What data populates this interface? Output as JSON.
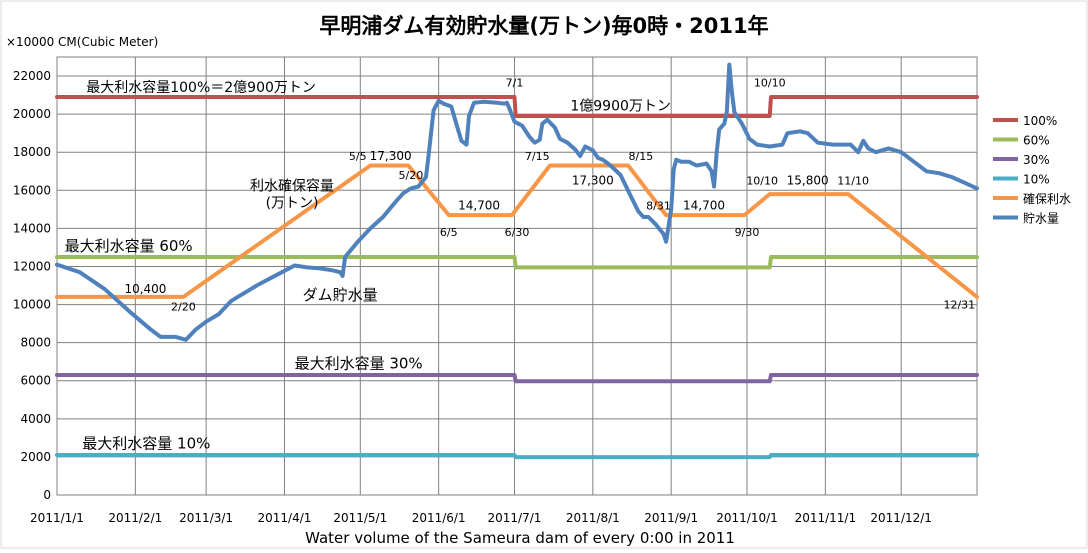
{
  "chart_data": {
    "type": "line",
    "title": "早明浦ダム有効貯水量(万トン)毎0時・2011年",
    "unit_label": "×10000 CM(Cubic Meter)",
    "xlabel": "Water volume of the Sameura dam of every 0:00 in 2011",
    "ylim": [
      0,
      23000
    ],
    "yticks": [
      0,
      2000,
      4000,
      6000,
      8000,
      10000,
      12000,
      14000,
      16000,
      18000,
      20000,
      22000
    ],
    "xlim": [
      1,
      365
    ],
    "grid": true,
    "legend_position": "right",
    "x_ticks": [
      {
        "day": 1,
        "label": "2011/1/1"
      },
      {
        "day": 32,
        "label": "2011/2/1"
      },
      {
        "day": 60,
        "label": "2011/3/1"
      },
      {
        "day": 91,
        "label": "2011/4/1"
      },
      {
        "day": 121,
        "label": "2011/5/1"
      },
      {
        "day": 152,
        "label": "2011/6/1"
      },
      {
        "day": 182,
        "label": "2011/7/1"
      },
      {
        "day": 213,
        "label": "2011/8/1"
      },
      {
        "day": 244,
        "label": "2011/9/1"
      },
      {
        "day": 274,
        "label": "2011/10/1"
      },
      {
        "day": 305,
        "label": "2011/11/1"
      },
      {
        "day": 335,
        "label": "2011/12/1"
      }
    ],
    "series": [
      {
        "name": "100%",
        "color": "#c0504d",
        "points": [
          [
            1,
            20900
          ],
          [
            182,
            20900
          ],
          [
            182.5,
            19900
          ],
          [
            283,
            19900
          ],
          [
            283.5,
            20900
          ],
          [
            365,
            20900
          ]
        ]
      },
      {
        "name": "60%",
        "color": "#9bbb59",
        "points": [
          [
            1,
            12500
          ],
          [
            182,
            12500
          ],
          [
            182.5,
            11950
          ],
          [
            283,
            11950
          ],
          [
            283.5,
            12500
          ],
          [
            365,
            12500
          ]
        ]
      },
      {
        "name": "30%",
        "color": "#8064a2",
        "points": [
          [
            1,
            6300
          ],
          [
            182,
            6300
          ],
          [
            182.5,
            5970
          ],
          [
            283,
            5970
          ],
          [
            283.5,
            6300
          ],
          [
            365,
            6300
          ]
        ]
      },
      {
        "name": "10%",
        "color": "#4bacc6",
        "points": [
          [
            1,
            2100
          ],
          [
            182,
            2100
          ],
          [
            182.5,
            1990
          ],
          [
            283,
            1990
          ],
          [
            283.5,
            2100
          ],
          [
            365,
            2100
          ]
        ]
      },
      {
        "name": "確保利水",
        "color": "#f79646",
        "points": [
          [
            1,
            10400
          ],
          [
            51,
            10400
          ],
          [
            125,
            17300
          ],
          [
            140,
            17300
          ],
          [
            156,
            14700
          ],
          [
            181,
            14700
          ],
          [
            196,
            17300
          ],
          [
            227,
            17300
          ],
          [
            242,
            14700
          ],
          [
            273,
            14700
          ],
          [
            283,
            15800
          ],
          [
            314,
            15800
          ],
          [
            365,
            10400
          ]
        ]
      },
      {
        "name": "貯水量",
        "color": "#4f81bd",
        "points": [
          [
            1,
            12100
          ],
          [
            10,
            11700
          ],
          [
            20,
            10800
          ],
          [
            30,
            9600
          ],
          [
            38,
            8700
          ],
          [
            42,
            8300
          ],
          [
            48,
            8300
          ],
          [
            52,
            8150
          ],
          [
            56,
            8700
          ],
          [
            60,
            9100
          ],
          [
            65,
            9500
          ],
          [
            70,
            10200
          ],
          [
            80,
            11000
          ],
          [
            90,
            11700
          ],
          [
            95,
            12050
          ],
          [
            100,
            11950
          ],
          [
            105,
            11900
          ],
          [
            110,
            11800
          ],
          [
            113,
            11700
          ],
          [
            114,
            11500
          ],
          [
            115,
            12500
          ],
          [
            120,
            13300
          ],
          [
            125,
            14000
          ],
          [
            130,
            14600
          ],
          [
            135,
            15400
          ],
          [
            138,
            15850
          ],
          [
            141,
            16100
          ],
          [
            144,
            16200
          ],
          [
            147,
            16700
          ],
          [
            148,
            17800
          ],
          [
            150,
            20200
          ],
          [
            152,
            20700
          ],
          [
            154,
            20550
          ],
          [
            157,
            20400
          ],
          [
            159,
            19500
          ],
          [
            161,
            18600
          ],
          [
            163,
            18400
          ],
          [
            164,
            19900
          ],
          [
            166,
            20600
          ],
          [
            170,
            20650
          ],
          [
            175,
            20600
          ],
          [
            178,
            20550
          ],
          [
            179,
            20600
          ],
          [
            180,
            20300
          ],
          [
            182,
            19600
          ],
          [
            185,
            19400
          ],
          [
            188,
            18800
          ],
          [
            190,
            18500
          ],
          [
            192,
            18650
          ],
          [
            193,
            19500
          ],
          [
            195,
            19700
          ],
          [
            198,
            19300
          ],
          [
            200,
            18700
          ],
          [
            203,
            18500
          ],
          [
            206,
            18150
          ],
          [
            208,
            17800
          ],
          [
            210,
            18300
          ],
          [
            213,
            18100
          ],
          [
            215,
            17700
          ],
          [
            217,
            17600
          ],
          [
            220,
            17300
          ],
          [
            224,
            16800
          ],
          [
            228,
            15700
          ],
          [
            231,
            14900
          ],
          [
            233,
            14600
          ],
          [
            235,
            14600
          ],
          [
            238,
            14200
          ],
          [
            241,
            13700
          ],
          [
            242,
            13300
          ],
          [
            244,
            15000
          ],
          [
            245,
            17100
          ],
          [
            246,
            17600
          ],
          [
            248,
            17500
          ],
          [
            251,
            17500
          ],
          [
            254,
            17300
          ],
          [
            258,
            17400
          ],
          [
            260,
            17000
          ],
          [
            261,
            16200
          ],
          [
            262,
            18000
          ],
          [
            263,
            19200
          ],
          [
            265,
            19500
          ],
          [
            266,
            20100
          ],
          [
            267,
            22600
          ],
          [
            268,
            21200
          ],
          [
            269,
            20100
          ],
          [
            272,
            19500
          ],
          [
            275,
            18700
          ],
          [
            278,
            18400
          ],
          [
            283,
            18300
          ],
          [
            288,
            18400
          ],
          [
            290,
            19000
          ],
          [
            295,
            19100
          ],
          [
            298,
            19000
          ],
          [
            302,
            18500
          ],
          [
            308,
            18400
          ],
          [
            315,
            18400
          ],
          [
            318,
            18000
          ],
          [
            320,
            18600
          ],
          [
            322,
            18200
          ],
          [
            325,
            18000
          ],
          [
            330,
            18200
          ],
          [
            335,
            18000
          ],
          [
            340,
            17500
          ],
          [
            345,
            17000
          ],
          [
            350,
            16900
          ],
          [
            355,
            16700
          ],
          [
            360,
            16400
          ],
          [
            365,
            16100
          ]
        ]
      }
    ],
    "annotations": [
      {
        "text": "最大利水容量100%＝2億900万トン",
        "x": 58,
        "y": 21150,
        "anchor": "middle",
        "size": 14
      },
      {
        "text": "7/1",
        "x": 182,
        "y": 21450,
        "anchor": "middle",
        "size": 11
      },
      {
        "text": "1億9900万トン",
        "x": 224,
        "y": 20200,
        "anchor": "middle",
        "size": 14
      },
      {
        "text": "10/10",
        "x": 283,
        "y": 21450,
        "anchor": "middle",
        "size": 11
      },
      {
        "text": "最大利水容量 60%",
        "x": 4,
        "y": 12800,
        "anchor": "start",
        "size": 15
      },
      {
        "text": "最大利水容量 30%",
        "x": 95,
        "y": 6650,
        "anchor": "start",
        "size": 15
      },
      {
        "text": "最大利水容量 10%",
        "x": 11,
        "y": 2450,
        "anchor": "start",
        "size": 15
      },
      {
        "text": "ダム貯水量",
        "x": 113,
        "y": 10250,
        "anchor": "middle",
        "size": 15
      },
      {
        "text": "利水確保容量",
        "x": 94,
        "y": 16000,
        "anchor": "middle",
        "size": 14
      },
      {
        "text": "(万トン)",
        "x": 94,
        "y": 15100,
        "anchor": "middle",
        "size": 14
      },
      {
        "text": "10,400",
        "x": 36,
        "y": 10600,
        "anchor": "middle",
        "size": 12
      },
      {
        "text": "2/20",
        "x": 51,
        "y": 9700,
        "anchor": "middle",
        "size": 11
      },
      {
        "text": "5/5",
        "x": 120,
        "y": 17600,
        "anchor": "middle",
        "size": 11
      },
      {
        "text": "17,300",
        "x": 133,
        "y": 17600,
        "anchor": "middle",
        "size": 12
      },
      {
        "text": "5/20",
        "x": 141,
        "y": 16600,
        "anchor": "middle",
        "size": 11
      },
      {
        "text": "14,700",
        "x": 168,
        "y": 15000,
        "anchor": "middle",
        "size": 12
      },
      {
        "text": "6/5",
        "x": 156,
        "y": 13600,
        "anchor": "middle",
        "size": 11
      },
      {
        "text": "6/30",
        "x": 183,
        "y": 13600,
        "anchor": "middle",
        "size": 11
      },
      {
        "text": "7/15",
        "x": 191,
        "y": 17600,
        "anchor": "middle",
        "size": 11
      },
      {
        "text": "17,300",
        "x": 213,
        "y": 16300,
        "anchor": "middle",
        "size": 12
      },
      {
        "text": "8/15",
        "x": 232,
        "y": 17600,
        "anchor": "middle",
        "size": 11
      },
      {
        "text": "8/31",
        "x": 239,
        "y": 15000,
        "anchor": "middle",
        "size": 11
      },
      {
        "text": "14,700",
        "x": 257,
        "y": 15000,
        "anchor": "middle",
        "size": 12
      },
      {
        "text": "9/30",
        "x": 274,
        "y": 13600,
        "anchor": "middle",
        "size": 11
      },
      {
        "text": "10/10",
        "x": 280,
        "y": 16300,
        "anchor": "middle",
        "size": 11
      },
      {
        "text": "15,800",
        "x": 298,
        "y": 16300,
        "anchor": "middle",
        "size": 12
      },
      {
        "text": "11/10",
        "x": 316,
        "y": 16300,
        "anchor": "middle",
        "size": 11
      },
      {
        "text": "12/31",
        "x": 358,
        "y": 9800,
        "anchor": "middle",
        "size": 11
      }
    ]
  }
}
